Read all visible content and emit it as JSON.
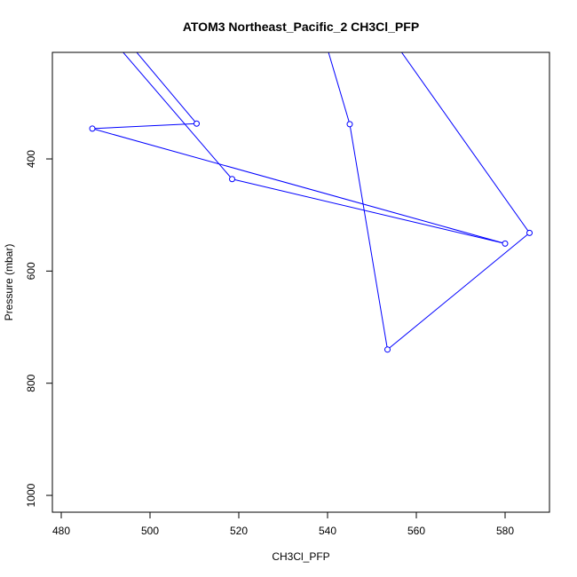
{
  "chart_data": {
    "type": "line",
    "title": "ATOM3 Northeast_Pacific_2 CH3Cl_PFP",
    "xlabel": "CH3Cl_PFP",
    "ylabel": "Pressure (mbar)",
    "xlim": [
      478,
      590
    ],
    "ylim": [
      1030,
      210
    ],
    "y_reversed": true,
    "grid": false,
    "legend": "none",
    "series_color": "#0000ff",
    "x_ticks": [
      480,
      500,
      520,
      540,
      560,
      580
    ],
    "y_ticks": [
      400,
      600,
      800,
      1000
    ],
    "points": [
      {
        "x": 480.0,
        "y": 50.0
      },
      {
        "x": 510.5,
        "y": 337.0
      },
      {
        "x": 487.0,
        "y": 346.0
      },
      {
        "x": 580.0,
        "y": 551.0
      },
      {
        "x": 518.5,
        "y": 436.0
      },
      {
        "x": 457.0,
        "y": -130.0
      },
      {
        "x": 529.0,
        "y": -90.0
      },
      {
        "x": 545.0,
        "y": 338.0
      },
      {
        "x": 553.5,
        "y": 740.0
      },
      {
        "x": 585.5,
        "y": 532.0
      },
      {
        "x": 520.0,
        "y": -200.0
      }
    ]
  }
}
